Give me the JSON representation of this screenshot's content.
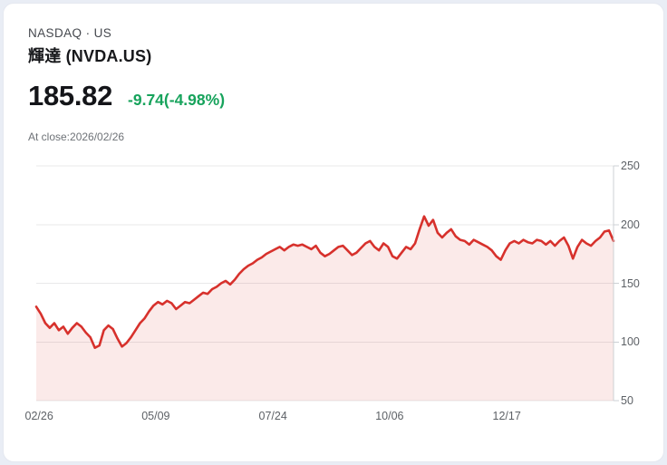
{
  "header": {
    "exchange_line": "NASDAQ · US",
    "name": "輝達 (NVDA.US)"
  },
  "quote": {
    "price": "185.82",
    "change": "-9.74(-4.98%)",
    "change_color": "#17a35c",
    "as_of": "At close:2026/02/26"
  },
  "colors": {
    "page_background": "#e9edf5",
    "card_background": "#ffffff",
    "line": "#d7312c",
    "area_fill": "rgba(214,47,43,0.10)",
    "gridline": "#e8e8ea",
    "axis": "#ccd0d4",
    "tick_text": "#5d6166"
  },
  "chart_data": {
    "type": "area",
    "title": "",
    "xlabel": "",
    "ylabel": "",
    "xticks": [
      "02/26",
      "05/09",
      "07/24",
      "10/06",
      "12/17"
    ],
    "yticks": [
      250,
      200,
      150,
      100,
      50
    ],
    "ylim": [
      50,
      250
    ],
    "grid": true,
    "legend_position": "none",
    "series": [
      {
        "name": "NVDA.US",
        "values": [
          130,
          124,
          116,
          112,
          116,
          110,
          113,
          107,
          112,
          116,
          113,
          108,
          104,
          95,
          97,
          110,
          114,
          111,
          103,
          96,
          99,
          104,
          110,
          116,
          120,
          126,
          131,
          134,
          132,
          135,
          133,
          128,
          131,
          134,
          133,
          136,
          139,
          142,
          141,
          145,
          147,
          150,
          152,
          149,
          153,
          158,
          162,
          165,
          167,
          170,
          172,
          175,
          177,
          179,
          181,
          178,
          181,
          183,
          182,
          183,
          181,
          179,
          182,
          176,
          173,
          175,
          178,
          181,
          182,
          178,
          174,
          176,
          180,
          184,
          186,
          181,
          178,
          184,
          181,
          173,
          171,
          176,
          181,
          179,
          184,
          196,
          207,
          199,
          204,
          193,
          189,
          193,
          196,
          190,
          187,
          186,
          183,
          187,
          185,
          183,
          181,
          178,
          173,
          170,
          178,
          184,
          186,
          184,
          187,
          185,
          184,
          187,
          186,
          183,
          186,
          182,
          186,
          189,
          182,
          171,
          181,
          187,
          184,
          182,
          186,
          189,
          194,
          195,
          186
        ]
      }
    ]
  }
}
